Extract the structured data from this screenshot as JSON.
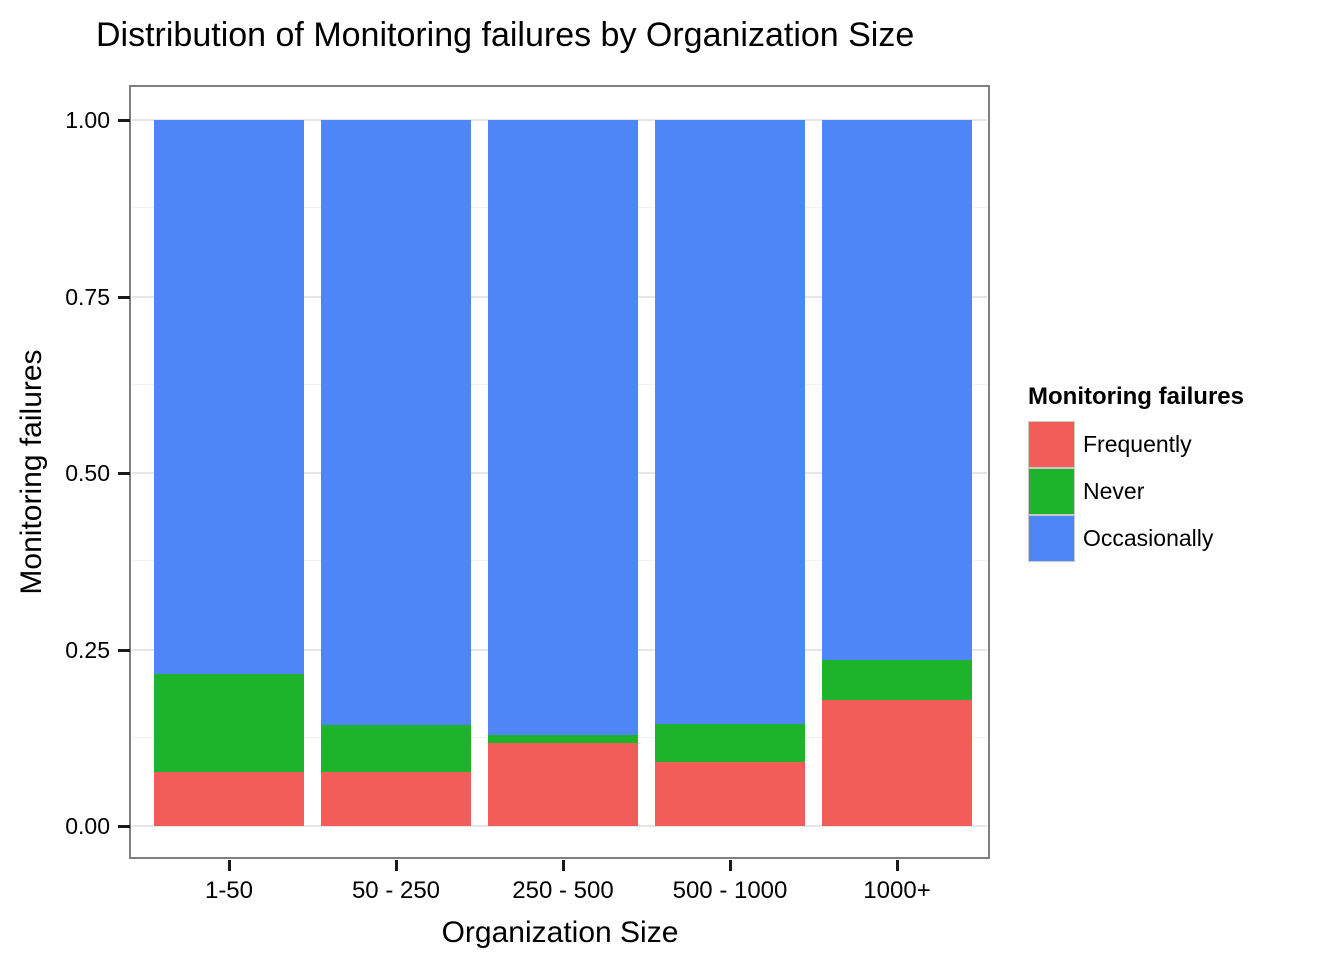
{
  "title": "Distribution of Monitoring failures by Organization Size",
  "axes": {
    "x": {
      "title": "Organization Size",
      "tick_labels": [
        "1-50",
        "50 - 250",
        "250 - 500",
        "500 - 1000",
        "1000+"
      ]
    },
    "y": {
      "title": "Monitoring failures",
      "tick_labels": [
        "0.00",
        "0.25",
        "0.50",
        "0.75",
        "1.00"
      ],
      "tick_values": [
        0,
        0.25,
        0.5,
        0.75,
        1
      ]
    }
  },
  "legend": {
    "title": "Monitoring failures",
    "position": "right",
    "entries": [
      {
        "label": "Frequently",
        "color": "#F25D5A"
      },
      {
        "label": "Never",
        "color": "#1DB32A"
      },
      {
        "label": "Occasionally",
        "color": "#4E86F8"
      }
    ]
  },
  "chart_data": {
    "type": "bar",
    "variant": "stacked-proportion",
    "title": "Distribution of Monitoring failures by Organization Size",
    "xlabel": "Organization Size",
    "ylabel": "Monitoring failures",
    "categories": [
      "1-50",
      "50 - 250",
      "250 - 500",
      "500 - 1000",
      "1000+"
    ],
    "series": [
      {
        "name": "Frequently",
        "color": "#F25D5A",
        "values": [
          0.077,
          0.077,
          0.118,
          0.09,
          0.179
        ]
      },
      {
        "name": "Never",
        "color": "#1DB32A",
        "values": [
          0.139,
          0.066,
          0.011,
          0.055,
          0.056
        ]
      },
      {
        "name": "Occasionally",
        "color": "#4E86F8",
        "values": [
          0.784,
          0.857,
          0.871,
          0.855,
          0.765
        ]
      }
    ],
    "stack_order_bottom_to_top": [
      "Frequently",
      "Never",
      "Occasionally"
    ],
    "ylim": [
      0,
      1
    ],
    "major_gridlines": [
      0,
      0.25,
      0.5,
      0.75,
      1
    ],
    "minor_gridlines": [
      0.125,
      0.375,
      0.625,
      0.875
    ],
    "grid": true,
    "legend_position": "right",
    "panel_style": {
      "background": "#FFFFFF",
      "border_color": "#7F7F7F",
      "major_grid_color": "#E6E6E6",
      "minor_grid_color": "#F2F2F2",
      "tick_color": "#1A1A1A"
    }
  }
}
